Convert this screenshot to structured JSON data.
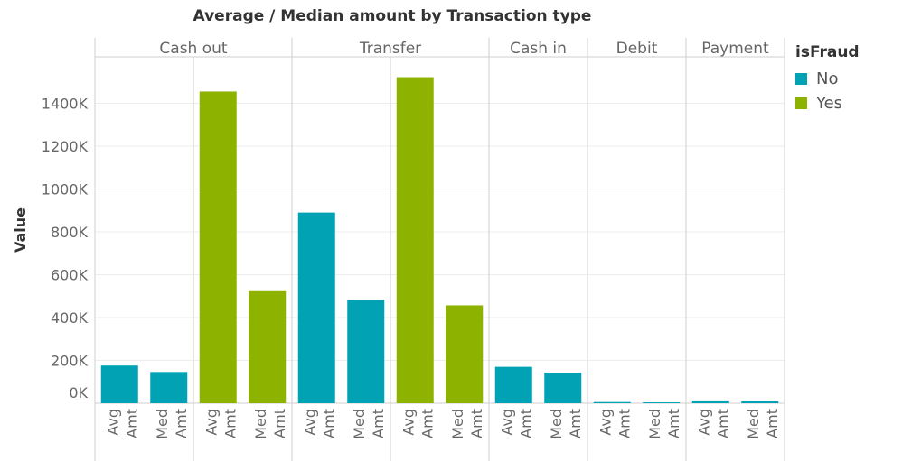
{
  "chart_data": {
    "type": "bar",
    "title": "Average / Median amount by Transaction type",
    "ylabel": "Value",
    "ylim": [
      0,
      1600000
    ],
    "yticks": [
      {
        "value": 0,
        "label": "0K"
      },
      {
        "value": 200000,
        "label": "200K"
      },
      {
        "value": 400000,
        "label": "400K"
      },
      {
        "value": 600000,
        "label": "600K"
      },
      {
        "value": 800000,
        "label": "800K"
      },
      {
        "value": 1000000,
        "label": "1000K"
      },
      {
        "value": 1200000,
        "label": "1200K"
      },
      {
        "value": 1400000,
        "label": "1400K"
      }
    ],
    "legend": {
      "title": "isFraud",
      "placement": "top-right",
      "items": [
        {
          "label": "No",
          "color": "#00a2b4"
        },
        {
          "label": "Yes",
          "color": "#8db300"
        }
      ]
    },
    "colors": {
      "No": "#00a2b4",
      "Yes": "#8db300"
    },
    "groups": [
      {
        "name": "Cash out",
        "bars": [
          {
            "measure": "Avg Amt",
            "isFraud": "No",
            "value": 176000
          },
          {
            "measure": "Med Amt",
            "isFraud": "No",
            "value": 146000
          },
          {
            "measure": "Avg Amt",
            "isFraud": "Yes",
            "value": 1455000
          },
          {
            "measure": "Med Amt",
            "isFraud": "Yes",
            "value": 523000
          }
        ]
      },
      {
        "name": "Transfer",
        "bars": [
          {
            "measure": "Avg Amt",
            "isFraud": "No",
            "value": 890000
          },
          {
            "measure": "Med Amt",
            "isFraud": "No",
            "value": 483000
          },
          {
            "measure": "Avg Amt",
            "isFraud": "Yes",
            "value": 1522000
          },
          {
            "measure": "Med Amt",
            "isFraud": "Yes",
            "value": 457000
          }
        ]
      },
      {
        "name": "Cash in",
        "bars": [
          {
            "measure": "Avg Amt",
            "isFraud": "No",
            "value": 170000
          },
          {
            "measure": "Med Amt",
            "isFraud": "No",
            "value": 143000
          }
        ]
      },
      {
        "name": "Debit",
        "bars": [
          {
            "measure": "Avg Amt",
            "isFraud": "No",
            "value": 5500
          },
          {
            "measure": "Med Amt",
            "isFraud": "No",
            "value": 3000
          }
        ]
      },
      {
        "name": "Payment",
        "bars": [
          {
            "measure": "Avg Amt",
            "isFraud": "No",
            "value": 13000
          },
          {
            "measure": "Med Amt",
            "isFraud": "No",
            "value": 9500
          }
        ]
      }
    ]
  }
}
